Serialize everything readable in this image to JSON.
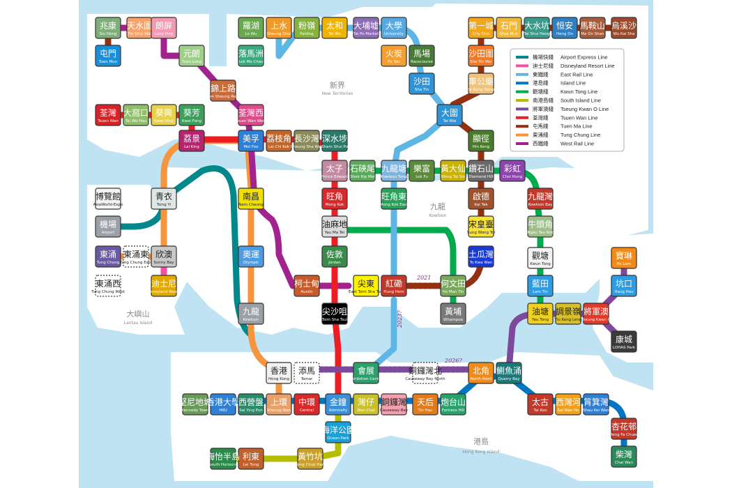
{
  "regions": {
    "new_territories": {
      "zh": "新界",
      "en": "New Territories"
    },
    "kowloon": {
      "zh": "九龍",
      "en": "Kowloon"
    },
    "lantau": {
      "zh": "大嶼山",
      "en": "Lantau Island"
    },
    "hk_island": {
      "zh": "港島",
      "en": "Hong Kong Island"
    }
  },
  "legend": [
    {
      "zh": "機場快綫",
      "en": "Airport Express Line",
      "color": "#00888A"
    },
    {
      "zh": "迪士尼綫",
      "en": "Disneyland Resort Line",
      "color": "#F550A6"
    },
    {
      "zh": "東鐵綫",
      "en": "East Rail Line",
      "color": "#5EB6E4"
    },
    {
      "zh": "港島綫",
      "en": "Island Line",
      "color": "#0075C2"
    },
    {
      "zh": "觀塘綫",
      "en": "Kwun Tong Line",
      "color": "#00AB4E"
    },
    {
      "zh": "南港島綫",
      "en": "South Island Line",
      "color": "#B5BD00"
    },
    {
      "zh": "將軍澳綫",
      "en": "Tseung Kwan O Line",
      "color": "#7D499D"
    },
    {
      "zh": "荃灣綫",
      "en": "Tsuen Wan Line",
      "color": "#ED1D24"
    },
    {
      "zh": "屯馬綫",
      "en": "Tuen Ma Line",
      "color": "#923011"
    },
    {
      "zh": "東涌綫",
      "en": "Tung Chung Line",
      "color": "#F7943E"
    },
    {
      "zh": "西鐵綫",
      "en": "West Rail Line",
      "color": "#A3238E"
    }
  ],
  "annotations": {
    "y2021": "2021",
    "y2023": "2023?",
    "y2026": "2026?"
  },
  "stations": [
    {
      "zh": "兆康",
      "en": "Siu Hong",
      "color": "#7fae7a"
    },
    {
      "zh": "天水圍",
      "en": "Tin Shui Wai",
      "color": "#f7a26b"
    },
    {
      "zh": "朗屏",
      "en": "Long Ping",
      "color": "#f29ab2"
    },
    {
      "zh": "屯門",
      "en": "Tuen Mun",
      "color": "#1b8ed6"
    },
    {
      "zh": "元朗",
      "en": "Yuen Long",
      "color": "#9fcf8a"
    },
    {
      "zh": "錦上路",
      "en": "Kam Sheung Road",
      "color": "#c96b3b"
    },
    {
      "zh": "羅湖",
      "en": "Lo Wu",
      "color": "#6aa84f"
    },
    {
      "zh": "上水",
      "en": "Sheung Shui",
      "color": "#f09a2c"
    },
    {
      "zh": "粉嶺",
      "en": "Fanling",
      "color": "#86b33f"
    },
    {
      "zh": "太和",
      "en": "Tai Wo",
      "color": "#f0b400"
    },
    {
      "zh": "大埔墟",
      "en": "Tai Po Market",
      "color": "#8e6bb5"
    },
    {
      "zh": "大學",
      "en": "University",
      "color": "#5aa8e0"
    },
    {
      "zh": "落馬洲",
      "en": "Lok Ma Chau",
      "color": "#3aaa7e"
    },
    {
      "zh": "火炭",
      "en": "Fo Tan",
      "color": "#f2a033"
    },
    {
      "zh": "馬場",
      "en": "Racecourse",
      "color": "#4a7a3a"
    },
    {
      "zh": "沙田",
      "en": "Sha Tin",
      "color": "#2f93d6"
    },
    {
      "zh": "第一城",
      "en": "City One",
      "color": "#f2a61a"
    },
    {
      "zh": "石門",
      "en": "Shek Mun",
      "color": "#f0b73a"
    },
    {
      "zh": "大水坑",
      "en": "Tai Shui Hang",
      "color": "#3a9a8a"
    },
    {
      "zh": "恒安",
      "en": "Heng On",
      "color": "#2f7fc1"
    },
    {
      "zh": "馬鞍山",
      "en": "Ma On Shan",
      "color": "#a65c3a"
    },
    {
      "zh": "烏溪沙",
      "en": "Wu Kai Sha",
      "color": "#9a4a2a"
    },
    {
      "zh": "沙田圍",
      "en": "Sha Tin Wai",
      "color": "#ef7a2a"
    },
    {
      "zh": "車公廟",
      "en": "Che Kung Temple",
      "color": "#f0c27a"
    },
    {
      "zh": "大圍",
      "en": "Tai Wai",
      "color": "#2f93d6"
    },
    {
      "zh": "荃灣",
      "en": "Tsuen Wan",
      "color": "#d92128"
    },
    {
      "zh": "大窩口",
      "en": "Tai Wo Hau",
      "color": "#8fbf6a"
    },
    {
      "zh": "葵興",
      "en": "Kwai Hing",
      "color": "#e8d24a"
    },
    {
      "zh": "葵芳",
      "en": "Kwai Fong",
      "color": "#3aa05a"
    },
    {
      "zh": "荃灣西",
      "en": "Tsuen Wan West",
      "color": "#e04a8a"
    },
    {
      "zh": "荔景",
      "en": "Lai King",
      "color": "#b3266e"
    },
    {
      "zh": "美孚",
      "en": "Mei Foo",
      "color": "#2f7fd6"
    },
    {
      "zh": "荔枝角",
      "en": "Lai Chi Kok",
      "color": "#c2662a"
    },
    {
      "zh": "長沙灣",
      "en": "Cheung Sha Wan",
      "color": "#8a8a5a"
    },
    {
      "zh": "深水埗",
      "en": "Sham Shui Po",
      "color": "#2a7a6a"
    },
    {
      "zh": "顯徑",
      "en": "Hin Keng",
      "color": "#4a7a2a"
    },
    {
      "zh": "太子",
      "en": "Prince Edward",
      "color": "#c48aa0"
    },
    {
      "zh": "石硤尾",
      "en": "Shek Kip Mei",
      "color": "#5aaa5a"
    },
    {
      "zh": "九龍塘",
      "en": "Kowloon Tong",
      "color": "#7fb3e0"
    },
    {
      "zh": "樂富",
      "en": "Lok Fu",
      "color": "#5a8a3a"
    },
    {
      "zh": "黃大仙",
      "en": "Wong Tai Sin",
      "color": "#c9b300"
    },
    {
      "zh": "鑽石山",
      "en": "Diamond Hill",
      "color": "#6a6a6a"
    },
    {
      "zh": "彩虹",
      "en": "Choi Hung",
      "color": "#8e44ad"
    },
    {
      "zh": "旺角",
      "en": "Mong Kok",
      "color": "#d82a2a"
    },
    {
      "zh": "旺角東",
      "en": "Mong Kok East",
      "color": "#2aa05a"
    },
    {
      "zh": "啟德",
      "en": "Kai Tak",
      "color": "#a0522d"
    },
    {
      "zh": "九龍灣",
      "en": "Kowloon Bay",
      "color": "#c0392b"
    },
    {
      "zh": "博覽館",
      "en": "AsiaWorld-Expo",
      "color": "#f4f4f4",
      "dark": true
    },
    {
      "zh": "青衣",
      "en": "Tsing Yi",
      "color": "#dfe6e6",
      "dark": true
    },
    {
      "zh": "南昌",
      "en": "Nam Cheung",
      "color": "#f0e000",
      "dark": true
    },
    {
      "zh": "油麻地",
      "en": "Yau Ma Tei",
      "color": "#dcdcdc",
      "dark": true
    },
    {
      "zh": "牛頭角",
      "en": "Ngau Tau Kok",
      "color": "#9fbf8a"
    },
    {
      "zh": "宋皇臺",
      "en": "Sung Wong Toi",
      "color": "#f7e23a",
      "dark": true
    },
    {
      "zh": "機場",
      "en": "Airport",
      "color": "#9aa0a6"
    },
    {
      "zh": "觀塘",
      "en": "Kwun Tong",
      "color": "#f2f2f2",
      "dark": true
    },
    {
      "zh": "東涌",
      "en": "Tung Chung",
      "color": "#6a5aa0"
    },
    {
      "zh": "東涌東",
      "en": "Tung Chung East",
      "color": "#ffffff",
      "dark": true
    },
    {
      "zh": "欣澳",
      "en": "Sunny Bay",
      "color": "#c8c8c8",
      "dark": true
    },
    {
      "zh": "奧運",
      "en": "Olympic",
      "color": "#4f9be0"
    },
    {
      "zh": "佐敦",
      "en": "Jordan",
      "color": "#3a8a4a"
    },
    {
      "zh": "土瓜灣",
      "en": "To Kwa Wan",
      "color": "#1a3ad6"
    },
    {
      "zh": "東涌西",
      "en": "Tung Chung West",
      "color": "#ffffff",
      "dark": true
    },
    {
      "zh": "迪士尼",
      "en": "Disneyland Resort",
      "color": "#e0a800"
    },
    {
      "zh": "柯士甸",
      "en": "Austin",
      "color": "#c85a2a"
    },
    {
      "zh": "尖東",
      "en": "East Tsim Sha Tsui",
      "color": "#fff200",
      "dark": true
    },
    {
      "zh": "紅磡",
      "en": "Hung Hom",
      "color": "#c0392b"
    },
    {
      "zh": "何文田",
      "en": "Ho Man Tin",
      "color": "#7aa85a"
    },
    {
      "zh": "藍田",
      "en": "Lam Tin",
      "color": "#2f9be0"
    },
    {
      "zh": "坑口",
      "en": "Hang Hau",
      "color": "#2f9be0"
    },
    {
      "zh": "寶琳",
      "en": "Po Lam",
      "color": "#f28a1a"
    },
    {
      "zh": "九龍",
      "en": "Kowloon",
      "color": "#9aa0a6"
    },
    {
      "zh": "尖沙咀",
      "en": "Tsim Sha Tsui",
      "color": "#000000"
    },
    {
      "zh": "黃埔",
      "en": "Whampoa",
      "color": "#7a7a7a"
    },
    {
      "zh": "油塘",
      "en": "Yau Tong",
      "color": "#f0d020",
      "dark": true
    },
    {
      "zh": "調景嶺",
      "en": "Tiu Keng Leng",
      "color": "#d8c02a",
      "dark": true
    },
    {
      "zh": "將軍澳",
      "en": "Tseung Kwan O",
      "color": "#e03a2a"
    },
    {
      "zh": "康城",
      "en": "LOHAS Park",
      "color": "#3a3a3a"
    },
    {
      "zh": "香港",
      "en": "Hong Kong",
      "color": "#f2f2f2",
      "dark": true
    },
    {
      "zh": "添馬",
      "en": "Tamar",
      "color": "#ffffff",
      "dark": true
    },
    {
      "zh": "會展",
      "en": "Exhibition Centre",
      "color": "#2aa06a"
    },
    {
      "zh": "銅鑼灣北",
      "en": "Causeway Bay North",
      "color": "#ffffff",
      "dark": true
    },
    {
      "zh": "北角",
      "en": "North Point",
      "color": "#f28a1a"
    },
    {
      "zh": "鰂魚涌",
      "en": "Quarry Bay",
      "color": "#1a7a7a"
    },
    {
      "zh": "堅尼地城",
      "en": "Kennedy Town",
      "color": "#6a9a5a"
    },
    {
      "zh": "香港大學",
      "en": "HKU",
      "color": "#2f7fd6"
    },
    {
      "zh": "西營盤",
      "en": "Sai Ying Pun",
      "color": "#2a8a6a"
    },
    {
      "zh": "上環",
      "en": "Sheung Wan",
      "color": "#e8a06a"
    },
    {
      "zh": "中環",
      "en": "Central",
      "color": "#d82a2a"
    },
    {
      "zh": "金鐘",
      "en": "Admiralty",
      "color": "#3a8fd6"
    },
    {
      "zh": "灣仔",
      "en": "Wan Chai",
      "color": "#c9c02a"
    },
    {
      "zh": "銅鑼灣",
      "en": "Causeway Bay",
      "color": "#f2a0b0",
      "dark": true
    },
    {
      "zh": "天后",
      "en": "Tin Hau",
      "color": "#e07a1a"
    },
    {
      "zh": "炮台山",
      "en": "Fortress Hill",
      "color": "#2aa06a"
    },
    {
      "zh": "太古",
      "en": "Tai Koo",
      "color": "#c0392b"
    },
    {
      "zh": "西灣河",
      "en": "Sai Wan Ho",
      "color": "#f2a01a"
    },
    {
      "zh": "筲箕灣",
      "en": "Shau Kei Wan",
      "color": "#2f7fd6"
    },
    {
      "zh": "杏花邨",
      "en": "Heng Fa Chuen",
      "color": "#c0392b"
    },
    {
      "zh": "柴灣",
      "en": "Chai Wan",
      "color": "#2a8a5a"
    },
    {
      "zh": "海洋公園",
      "en": "Ocean Park",
      "color": "#1aa0d6"
    },
    {
      "zh": "黃竹坑",
      "en": "Wong Chuk Hang",
      "color": "#c9a02a"
    },
    {
      "zh": "利東",
      "en": "Lei Tung",
      "color": "#c0602a"
    },
    {
      "zh": "海怡半島",
      "en": "South Horizons",
      "color": "#2a8a4a"
    }
  ]
}
